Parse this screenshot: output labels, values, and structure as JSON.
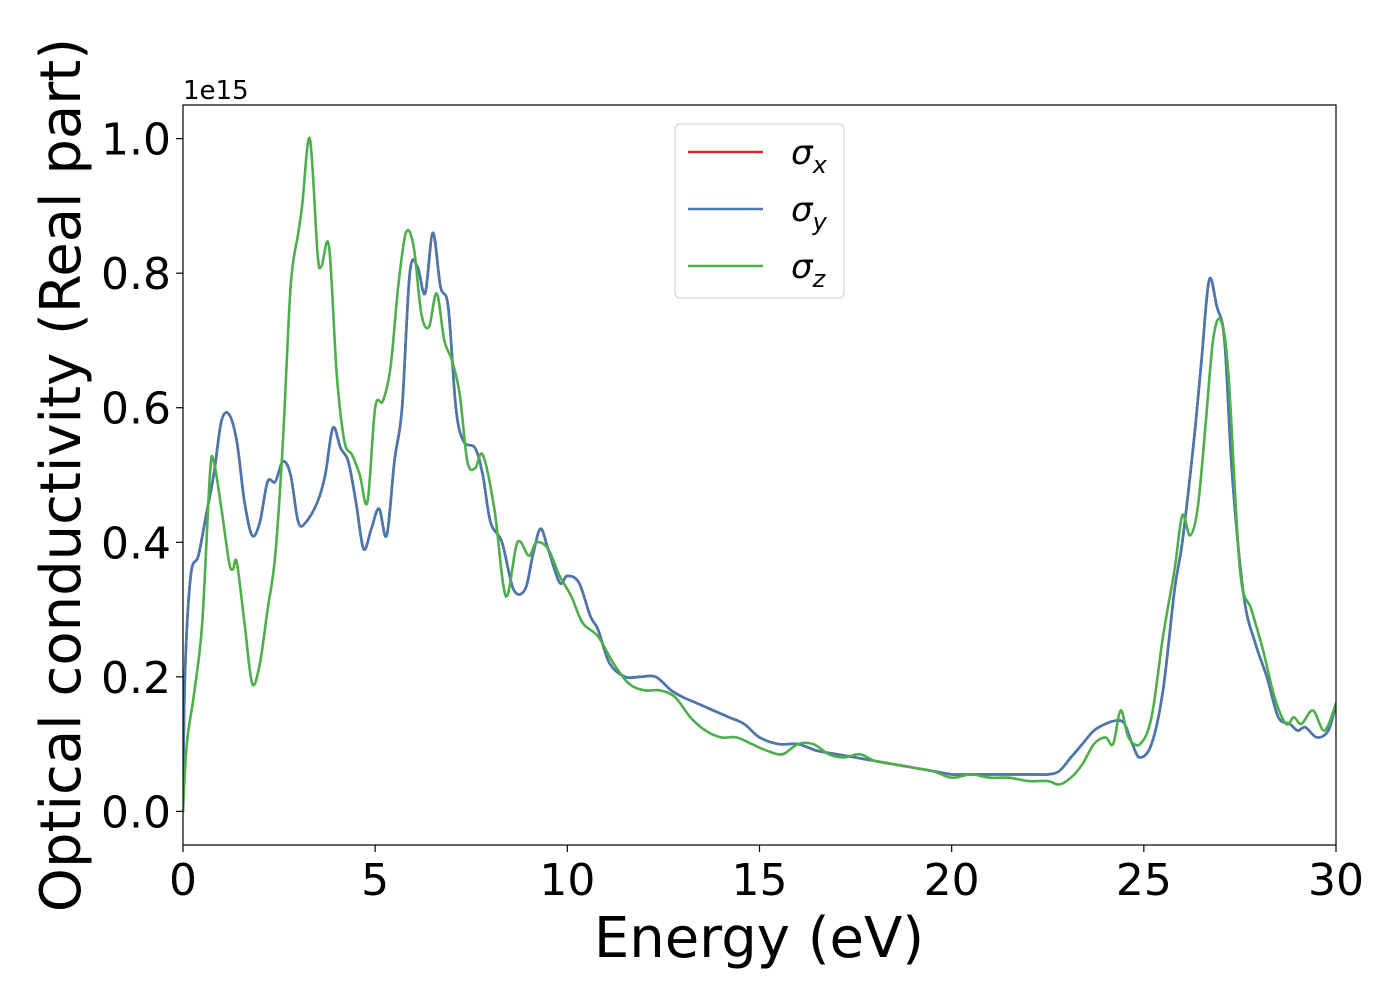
{
  "chart_data": {
    "type": "line",
    "title": "",
    "xlabel": "Energy (eV)",
    "ylabel": "Optical conductivity (Real part)",
    "y_offset_label": "1e15",
    "xlim": [
      0,
      30
    ],
    "ylim": [
      -0.05,
      1.05
    ],
    "x_ticks": [
      0,
      5,
      10,
      15,
      20,
      25,
      30
    ],
    "x_tick_labels": [
      "0",
      "5",
      "10",
      "15",
      "20",
      "25",
      "30"
    ],
    "y_ticks": [
      0.0,
      0.2,
      0.4,
      0.6,
      0.8,
      1.0
    ],
    "y_tick_labels": [
      "0.0",
      "0.2",
      "0.4",
      "0.6",
      "0.8",
      "1.0"
    ],
    "grid": false,
    "legend_position": "top-center",
    "series": [
      {
        "name": "σ",
        "subscript": "x",
        "color": "#d62728",
        "x": [
          0,
          0.05,
          0.2,
          0.4,
          0.6,
          0.8,
          1.0,
          1.2,
          1.4,
          1.6,
          1.8,
          2.0,
          2.2,
          2.4,
          2.6,
          2.8,
          3.0,
          3.2,
          3.5,
          3.7,
          3.9,
          4.1,
          4.3,
          4.5,
          4.7,
          4.9,
          5.1,
          5.3,
          5.5,
          5.7,
          5.9,
          6.1,
          6.3,
          6.5,
          6.7,
          6.9,
          7.1,
          7.3,
          7.6,
          7.8,
          8.0,
          8.3,
          8.6,
          8.9,
          9.1,
          9.3,
          9.5,
          9.8,
          10.0,
          10.3,
          10.6,
          10.8,
          11.1,
          11.5,
          11.9,
          12.3,
          12.7,
          13.0,
          13.4,
          13.8,
          14.2,
          14.6,
          15.0,
          15.5,
          16.0,
          16.5,
          17.0,
          17.5,
          18.0,
          18.5,
          19.0,
          19.5,
          20.0,
          20.5,
          21.0,
          21.5,
          22.0,
          22.5,
          22.8,
          23.1,
          23.4,
          23.7,
          24.0,
          24.3,
          24.5,
          24.7,
          24.9,
          25.2,
          25.5,
          25.8,
          26.0,
          26.3,
          26.5,
          26.7,
          26.9,
          27.1,
          27.3,
          27.6,
          27.9,
          28.2,
          28.5,
          28.8,
          29.0,
          29.2,
          29.5,
          29.8,
          30.0
        ],
        "y": [
          0.0,
          0.2,
          0.35,
          0.38,
          0.44,
          0.5,
          0.58,
          0.59,
          0.55,
          0.46,
          0.41,
          0.43,
          0.49,
          0.49,
          0.52,
          0.5,
          0.43,
          0.43,
          0.46,
          0.5,
          0.57,
          0.54,
          0.52,
          0.46,
          0.39,
          0.42,
          0.45,
          0.41,
          0.52,
          0.6,
          0.8,
          0.81,
          0.77,
          0.86,
          0.78,
          0.75,
          0.6,
          0.55,
          0.54,
          0.5,
          0.43,
          0.4,
          0.33,
          0.33,
          0.38,
          0.42,
          0.39,
          0.34,
          0.35,
          0.34,
          0.29,
          0.27,
          0.22,
          0.2,
          0.2,
          0.2,
          0.18,
          0.17,
          0.16,
          0.15,
          0.14,
          0.13,
          0.11,
          0.1,
          0.1,
          0.09,
          0.085,
          0.08,
          0.075,
          0.07,
          0.065,
          0.06,
          0.055,
          0.055,
          0.055,
          0.055,
          0.055,
          0.055,
          0.06,
          0.08,
          0.1,
          0.12,
          0.13,
          0.135,
          0.13,
          0.1,
          0.08,
          0.1,
          0.18,
          0.33,
          0.4,
          0.55,
          0.67,
          0.79,
          0.75,
          0.7,
          0.5,
          0.32,
          0.25,
          0.2,
          0.14,
          0.13,
          0.12,
          0.125,
          0.11,
          0.12,
          0.16
        ]
      },
      {
        "name": "σ",
        "subscript": "y",
        "color": "#4779b0",
        "x": [
          0,
          0.05,
          0.2,
          0.4,
          0.6,
          0.8,
          1.0,
          1.2,
          1.4,
          1.6,
          1.8,
          2.0,
          2.2,
          2.4,
          2.6,
          2.8,
          3.0,
          3.2,
          3.5,
          3.7,
          3.9,
          4.1,
          4.3,
          4.5,
          4.7,
          4.9,
          5.1,
          5.3,
          5.5,
          5.7,
          5.9,
          6.1,
          6.3,
          6.5,
          6.7,
          6.9,
          7.1,
          7.3,
          7.6,
          7.8,
          8.0,
          8.3,
          8.6,
          8.9,
          9.1,
          9.3,
          9.5,
          9.8,
          10.0,
          10.3,
          10.6,
          10.8,
          11.1,
          11.5,
          11.9,
          12.3,
          12.7,
          13.0,
          13.4,
          13.8,
          14.2,
          14.6,
          15.0,
          15.5,
          16.0,
          16.5,
          17.0,
          17.5,
          18.0,
          18.5,
          19.0,
          19.5,
          20.0,
          20.5,
          21.0,
          21.5,
          22.0,
          22.5,
          22.8,
          23.1,
          23.4,
          23.7,
          24.0,
          24.3,
          24.5,
          24.7,
          24.9,
          25.2,
          25.5,
          25.8,
          26.0,
          26.3,
          26.5,
          26.7,
          26.9,
          27.1,
          27.3,
          27.6,
          27.9,
          28.2,
          28.5,
          28.8,
          29.0,
          29.2,
          29.5,
          29.8,
          30.0
        ],
        "y": [
          0.0,
          0.2,
          0.35,
          0.38,
          0.44,
          0.5,
          0.58,
          0.59,
          0.55,
          0.46,
          0.41,
          0.43,
          0.49,
          0.49,
          0.52,
          0.5,
          0.43,
          0.43,
          0.46,
          0.5,
          0.57,
          0.54,
          0.52,
          0.46,
          0.39,
          0.42,
          0.45,
          0.41,
          0.52,
          0.6,
          0.8,
          0.81,
          0.77,
          0.86,
          0.78,
          0.75,
          0.6,
          0.55,
          0.54,
          0.5,
          0.43,
          0.4,
          0.33,
          0.33,
          0.38,
          0.42,
          0.39,
          0.34,
          0.35,
          0.34,
          0.29,
          0.27,
          0.22,
          0.2,
          0.2,
          0.2,
          0.18,
          0.17,
          0.16,
          0.15,
          0.14,
          0.13,
          0.11,
          0.1,
          0.1,
          0.09,
          0.085,
          0.08,
          0.075,
          0.07,
          0.065,
          0.06,
          0.055,
          0.055,
          0.055,
          0.055,
          0.055,
          0.055,
          0.06,
          0.08,
          0.1,
          0.12,
          0.13,
          0.135,
          0.13,
          0.1,
          0.08,
          0.1,
          0.18,
          0.33,
          0.4,
          0.55,
          0.67,
          0.79,
          0.75,
          0.7,
          0.5,
          0.32,
          0.25,
          0.2,
          0.14,
          0.13,
          0.12,
          0.125,
          0.11,
          0.12,
          0.16
        ]
      },
      {
        "name": "σ",
        "subscript": "z",
        "color": "#4daf4a",
        "x": [
          0,
          0.1,
          0.3,
          0.5,
          0.7,
          0.8,
          1.0,
          1.2,
          1.3,
          1.4,
          1.6,
          1.8,
          2.0,
          2.2,
          2.4,
          2.6,
          2.8,
          3.0,
          3.1,
          3.3,
          3.5,
          3.6,
          3.8,
          4.0,
          4.2,
          4.4,
          4.6,
          4.8,
          5.0,
          5.2,
          5.4,
          5.6,
          5.8,
          6.0,
          6.2,
          6.4,
          6.6,
          6.8,
          7.0,
          7.2,
          7.4,
          7.6,
          7.8,
          8.1,
          8.4,
          8.7,
          9.0,
          9.2,
          9.5,
          9.8,
          10.1,
          10.4,
          10.8,
          11.2,
          11.6,
          12.0,
          12.4,
          12.8,
          13.2,
          13.6,
          14.0,
          14.4,
          14.8,
          15.2,
          15.6,
          16.0,
          16.4,
          16.8,
          17.2,
          17.6,
          18.0,
          18.5,
          19.0,
          19.5,
          20.0,
          20.5,
          21.0,
          21.5,
          22.0,
          22.5,
          22.8,
          23.1,
          23.4,
          23.7,
          24.0,
          24.2,
          24.4,
          24.6,
          24.9,
          25.2,
          25.5,
          25.8,
          26.0,
          26.2,
          26.4,
          26.6,
          26.8,
          27.0,
          27.2,
          27.5,
          27.8,
          28.1,
          28.4,
          28.7,
          28.9,
          29.1,
          29.4,
          29.7,
          30.0
        ],
        "y": [
          0.0,
          0.1,
          0.18,
          0.28,
          0.5,
          0.52,
          0.45,
          0.37,
          0.36,
          0.37,
          0.28,
          0.19,
          0.22,
          0.3,
          0.38,
          0.55,
          0.78,
          0.86,
          0.9,
          1.0,
          0.83,
          0.81,
          0.84,
          0.65,
          0.55,
          0.53,
          0.5,
          0.46,
          0.6,
          0.61,
          0.66,
          0.78,
          0.86,
          0.84,
          0.74,
          0.72,
          0.77,
          0.7,
          0.67,
          0.62,
          0.52,
          0.51,
          0.53,
          0.45,
          0.32,
          0.4,
          0.38,
          0.4,
          0.39,
          0.35,
          0.32,
          0.28,
          0.26,
          0.22,
          0.19,
          0.18,
          0.18,
          0.17,
          0.14,
          0.12,
          0.11,
          0.11,
          0.1,
          0.09,
          0.085,
          0.1,
          0.1,
          0.085,
          0.08,
          0.085,
          0.075,
          0.07,
          0.065,
          0.06,
          0.05,
          0.055,
          0.05,
          0.05,
          0.045,
          0.045,
          0.04,
          0.05,
          0.07,
          0.1,
          0.11,
          0.1,
          0.15,
          0.11,
          0.1,
          0.14,
          0.26,
          0.36,
          0.44,
          0.41,
          0.45,
          0.57,
          0.7,
          0.73,
          0.65,
          0.36,
          0.3,
          0.24,
          0.17,
          0.13,
          0.14,
          0.13,
          0.15,
          0.12,
          0.16
        ]
      }
    ]
  }
}
